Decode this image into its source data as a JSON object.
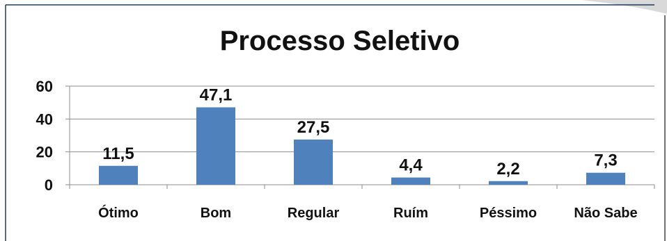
{
  "chart_data": {
    "type": "bar",
    "title": "Processo Seletivo",
    "categories": [
      "Ótimo",
      "Bom",
      "Regular",
      "Ruím",
      "Péssimo",
      "Não Sabe"
    ],
    "values": [
      11.5,
      47.1,
      27.5,
      4.4,
      2.2,
      7.3
    ],
    "data_labels": [
      "11,5",
      "47,1",
      "27,5",
      "4,4",
      "2,2",
      "7,3"
    ],
    "y_ticks": [
      "0",
      "20",
      "40",
      "60"
    ],
    "ylim": [
      0,
      60
    ],
    "xlabel": "",
    "ylabel": "",
    "grid": true,
    "legend": "none",
    "bar_color": "#4f81bd",
    "gridline_color": "#8c8c8c"
  }
}
